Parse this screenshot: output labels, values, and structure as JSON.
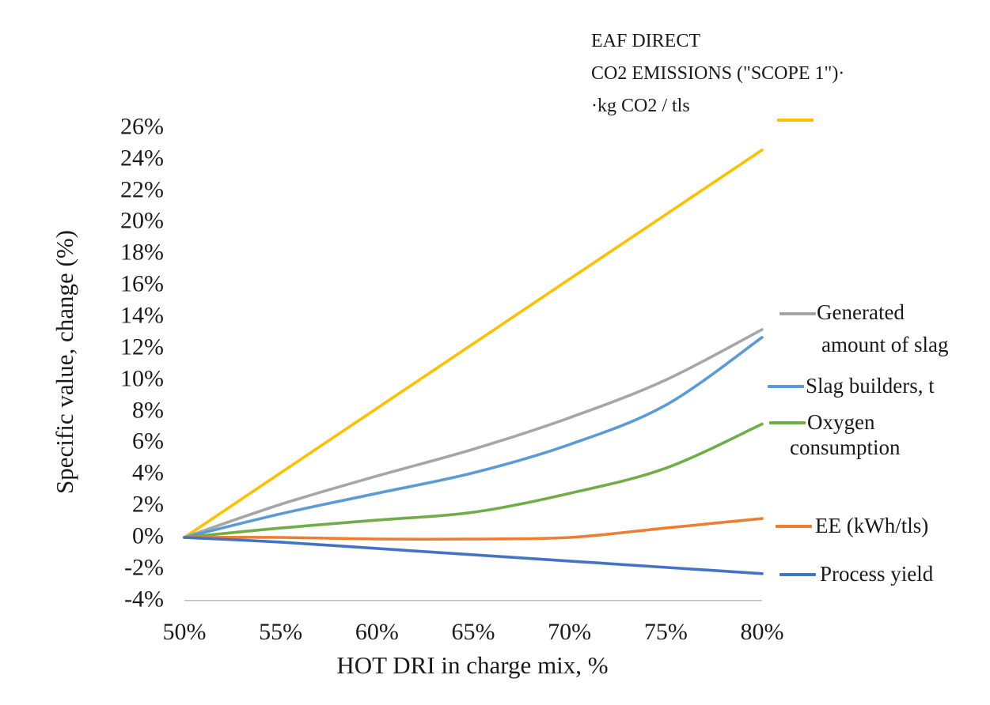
{
  "chart_data": {
    "type": "line",
    "smoothed": true,
    "x": [
      50,
      55,
      60,
      65,
      70,
      75,
      80
    ],
    "xlabel": "HOT DRI in charge mix, %",
    "ylabel": "Specific value, change (%)",
    "xlim": [
      50,
      80
    ],
    "ylim": [
      -4,
      26
    ],
    "grid": false,
    "legend_position": "right",
    "axis_line_color": "#bfbfbf",
    "series": [
      {
        "name": "EAF DIRECT CO2 EMISSIONS (\"SCOPE 1\") kg CO2 / tls",
        "color": "#FFC000",
        "values": [
          0,
          4.1,
          8.2,
          12.3,
          16.4,
          20.5,
          24.6
        ]
      },
      {
        "name": "Generated amount of slag",
        "color": "#A6A6A6",
        "values": [
          0,
          2.1,
          3.9,
          5.6,
          7.6,
          10.0,
          13.2
        ]
      },
      {
        "name": "Slag builders, t",
        "color": "#5B9BD5",
        "values": [
          0,
          1.5,
          2.8,
          4.1,
          5.9,
          8.4,
          12.7
        ]
      },
      {
        "name": "Oxygen consumption",
        "color": "#70AD47",
        "values": [
          0,
          0.6,
          1.1,
          1.6,
          2.8,
          4.4,
          7.2
        ]
      },
      {
        "name": "EE (kWh/tls)",
        "color": "#ED7D31",
        "values": [
          0,
          0.0,
          -0.1,
          -0.1,
          0.0,
          0.6,
          1.2
        ]
      },
      {
        "name": "Process yield",
        "color": "#4472C4",
        "values": [
          0,
          -0.3,
          -0.7,
          -1.1,
          -1.5,
          -1.9,
          -2.3
        ]
      }
    ],
    "yticks": [
      {
        "value": 26,
        "label": "26%"
      },
      {
        "value": 24,
        "label": "24%"
      },
      {
        "value": 22,
        "label": "22%"
      },
      {
        "value": 20,
        "label": "20%"
      },
      {
        "value": 18,
        "label": "18%"
      },
      {
        "value": 16,
        "label": "16%"
      },
      {
        "value": 14,
        "label": "14%"
      },
      {
        "value": 12,
        "label": "12%"
      },
      {
        "value": 10,
        "label": "10%"
      },
      {
        "value": 8,
        "label": "8%"
      },
      {
        "value": 6,
        "label": "6%"
      },
      {
        "value": 4,
        "label": "4%"
      },
      {
        "value": 2,
        "label": "2%"
      },
      {
        "value": 0,
        "label": "0%"
      },
      {
        "value": -2,
        "label": "-2%"
      },
      {
        "value": -4,
        "label": "-4%"
      }
    ],
    "xticks": [
      {
        "value": 50,
        "label": "50%"
      },
      {
        "value": 55,
        "label": "55%"
      },
      {
        "value": 60,
        "label": "60%"
      },
      {
        "value": 65,
        "label": "65%"
      },
      {
        "value": 70,
        "label": "70%"
      },
      {
        "value": 75,
        "label": "75%"
      },
      {
        "value": 80,
        "label": "80%"
      }
    ]
  },
  "legend": {
    "co2_lines": [
      "EAF DIRECT",
      "CO2 EMISSIONS (\"SCOPE 1\")·",
      "·kg CO2 / tls"
    ],
    "generated_lines": [
      "Generated",
      "amount of slag"
    ],
    "slag_builders": "Slag builders, t",
    "oxygen_lines": [
      "Oxygen",
      "consumption"
    ],
    "ee": "EE (kWh/tls)",
    "process_yield": "Process yield"
  }
}
